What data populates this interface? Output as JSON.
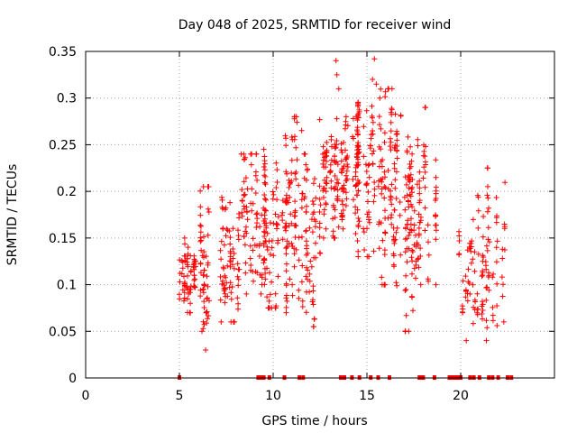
{
  "chart_data": {
    "type": "scatter",
    "title": "Day 048 of 2025, SRMTID for receiver wind",
    "xlabel": "GPS time / hours",
    "ylabel": "SRMTID / TECUs",
    "xlim": [
      0,
      25
    ],
    "ylim": [
      0,
      0.35
    ],
    "xticks": [
      0,
      5,
      10,
      15,
      20
    ],
    "yticks": [
      0,
      0.05,
      0.1,
      0.15,
      0.2,
      0.25,
      0.3,
      0.35
    ],
    "ytick_labels": [
      "0",
      "0.05",
      "0.1",
      "0.15",
      "0.2",
      "0.25",
      "0.3",
      "0.35"
    ],
    "grid": true,
    "marker": "+",
    "color": "#ff0000",
    "clusters": [
      {
        "x_start": 5.0,
        "x_end": 5.9,
        "y_min": 0.07,
        "y_max": 0.15,
        "count": 70
      },
      {
        "x_start": 5.7,
        "x_end": 6.6,
        "y_min": 0.03,
        "y_max": 0.205,
        "count": 55
      },
      {
        "x_start": 7.2,
        "x_end": 8.2,
        "y_min": 0.06,
        "y_max": 0.205,
        "count": 75
      },
      {
        "x_start": 8.2,
        "x_end": 9.6,
        "y_min": 0.09,
        "y_max": 0.24,
        "count": 90
      },
      {
        "x_start": 9.5,
        "x_end": 10.5,
        "y_min": 0.075,
        "y_max": 0.24,
        "count": 70
      },
      {
        "x_start": 10.5,
        "x_end": 11.5,
        "y_min": 0.07,
        "y_max": 0.28,
        "count": 80
      },
      {
        "x_start": 11.5,
        "x_end": 12.5,
        "y_min": 0.055,
        "y_max": 0.28,
        "count": 75
      },
      {
        "x_start": 12.5,
        "x_end": 13.5,
        "y_min": 0.15,
        "y_max": 0.29,
        "count": 75
      },
      {
        "x_start": 13.5,
        "x_end": 14.5,
        "y_min": 0.13,
        "y_max": 0.28,
        "count": 70
      },
      {
        "x_start": 14.5,
        "x_end": 15.5,
        "y_min": 0.13,
        "y_max": 0.3,
        "count": 85
      },
      {
        "x_start": 15.5,
        "x_end": 16.5,
        "y_min": 0.1,
        "y_max": 0.31,
        "count": 90
      },
      {
        "x_start": 16.5,
        "x_end": 17.5,
        "y_min": 0.05,
        "y_max": 0.3,
        "count": 85
      },
      {
        "x_start": 17.5,
        "x_end": 18.8,
        "y_min": 0.1,
        "y_max": 0.29,
        "count": 70
      },
      {
        "x_start": 19.9,
        "x_end": 20.6,
        "y_min": 0.07,
        "y_max": 0.165,
        "count": 30
      },
      {
        "x_start": 20.6,
        "x_end": 21.4,
        "y_min": 0.04,
        "y_max": 0.23,
        "count": 45
      },
      {
        "x_start": 21.4,
        "x_end": 22.6,
        "y_min": 0.05,
        "y_max": 0.225,
        "count": 40
      }
    ],
    "outliers": [
      {
        "x": 13.35,
        "y": 0.34
      },
      {
        "x": 15.4,
        "y": 0.342
      },
      {
        "x": 15.3,
        "y": 0.32
      },
      {
        "x": 15.5,
        "y": 0.315
      },
      {
        "x": 13.4,
        "y": 0.325
      },
      {
        "x": 13.5,
        "y": 0.31
      },
      {
        "x": 6.2,
        "y": 0.05
      },
      {
        "x": 6.4,
        "y": 0.03
      },
      {
        "x": 8.3,
        "y": 0.24
      },
      {
        "x": 9.5,
        "y": 0.245
      },
      {
        "x": 20.3,
        "y": 0.04
      },
      {
        "x": 22.3,
        "y": 0.06
      }
    ],
    "zero_markers": [
      5.0,
      9.2,
      9.3,
      9.4,
      9.5,
      9.8,
      10.6,
      11.4,
      11.6,
      13.6,
      13.8,
      14.2,
      14.6,
      15.2,
      15.6,
      16.2,
      17.8,
      17.9,
      18.0,
      18.6,
      19.4,
      19.5,
      19.6,
      19.7,
      19.8,
      19.9,
      20.0,
      20.5,
      20.7,
      21.0,
      21.5,
      21.7,
      22.0,
      22.5,
      22.7
    ]
  }
}
